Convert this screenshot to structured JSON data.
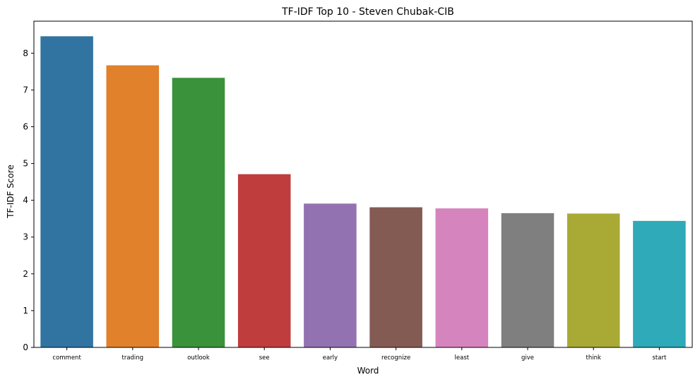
{
  "chart_data": {
    "type": "bar",
    "title": "TF-IDF Top 10 - Steven Chubak-CIB",
    "xlabel": "Word",
    "ylabel": "TF-IDF Score",
    "categories": [
      "comment",
      "trading",
      "outlook",
      "see",
      "early",
      "recognize",
      "least",
      "give",
      "think",
      "start"
    ],
    "values": [
      8.46,
      7.67,
      7.33,
      4.71,
      3.91,
      3.81,
      3.78,
      3.65,
      3.64,
      3.44
    ],
    "colors": [
      "#3274a1",
      "#e1812c",
      "#3a923a",
      "#c03d3e",
      "#9372b2",
      "#845b53",
      "#d684bd",
      "#7f7f7f",
      "#a9aa35",
      "#2eaab8"
    ],
    "ylim": [
      0,
      8.87
    ],
    "yticks": [
      0,
      1,
      2,
      3,
      4,
      5,
      6,
      7,
      8
    ],
    "grid": false,
    "legend": "none"
  }
}
